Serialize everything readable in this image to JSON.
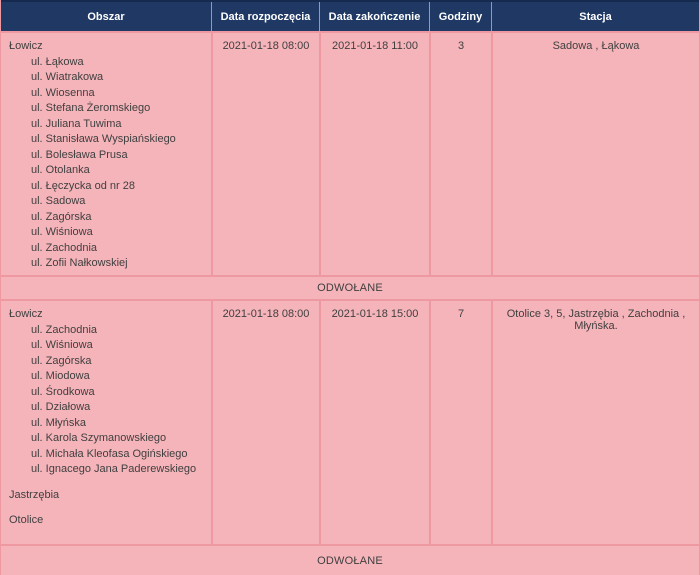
{
  "table": {
    "headers": [
      "Obszar",
      "Data rozpoczęcia",
      "Data zakończenie",
      "Godziny",
      "Stacja"
    ],
    "rows": [
      {
        "area_groups": [
          {
            "name": "Łowicz",
            "streets": [
              "ul. Łąkowa",
              "ul. Wiatrakowa",
              "ul. Wiosenna",
              "ul. Stefana Żeromskiego",
              "ul. Juliana Tuwima",
              "ul. Stanisława Wyspiańskiego",
              "ul. Bolesława Prusa",
              "ul. Otolanka",
              "ul. Łęczycka od nr 28",
              "ul. Sadowa",
              "ul. Zagórska",
              "ul. Wiśniowa",
              "ul. Zachodnia",
              "ul. Zofii Nałkowskiej"
            ]
          }
        ],
        "start": "2021-01-18 08:00",
        "end": "2021-01-18 11:00",
        "hours": "3",
        "station": "Sadowa , Łąkowa",
        "status": "ODWOŁANE"
      },
      {
        "area_groups": [
          {
            "name": "Łowicz",
            "streets": [
              "ul. Zachodnia",
              "ul. Wiśniowa",
              "ul. Zagórska",
              "ul. Miodowa",
              "ul. Środkowa",
              "ul. Działowa",
              "ul. Młyńska",
              "ul. Karola Szymanowskiego",
              "ul. Michała Kleofasa Ogińskiego",
              "ul. Ignacego Jana Paderewskiego"
            ]
          },
          {
            "name": "Jastrzębia",
            "streets": []
          },
          {
            "name": "Otolice",
            "streets": []
          }
        ],
        "start": "2021-01-18 08:00",
        "end": "2021-01-18 15:00",
        "hours": "7",
        "station": "Otolice 3, 5, Jastrzębia , Zachodnia , Młyńska.",
        "status": "ODWOŁANE"
      }
    ]
  },
  "colors": {
    "header_background": "#1f3864",
    "header_text": "#ffffff",
    "row_background": "#f5b4ba",
    "grid_line": "#ee99a1",
    "header_divider": "#8d9cb8",
    "body_text": "#3f3f3f"
  }
}
